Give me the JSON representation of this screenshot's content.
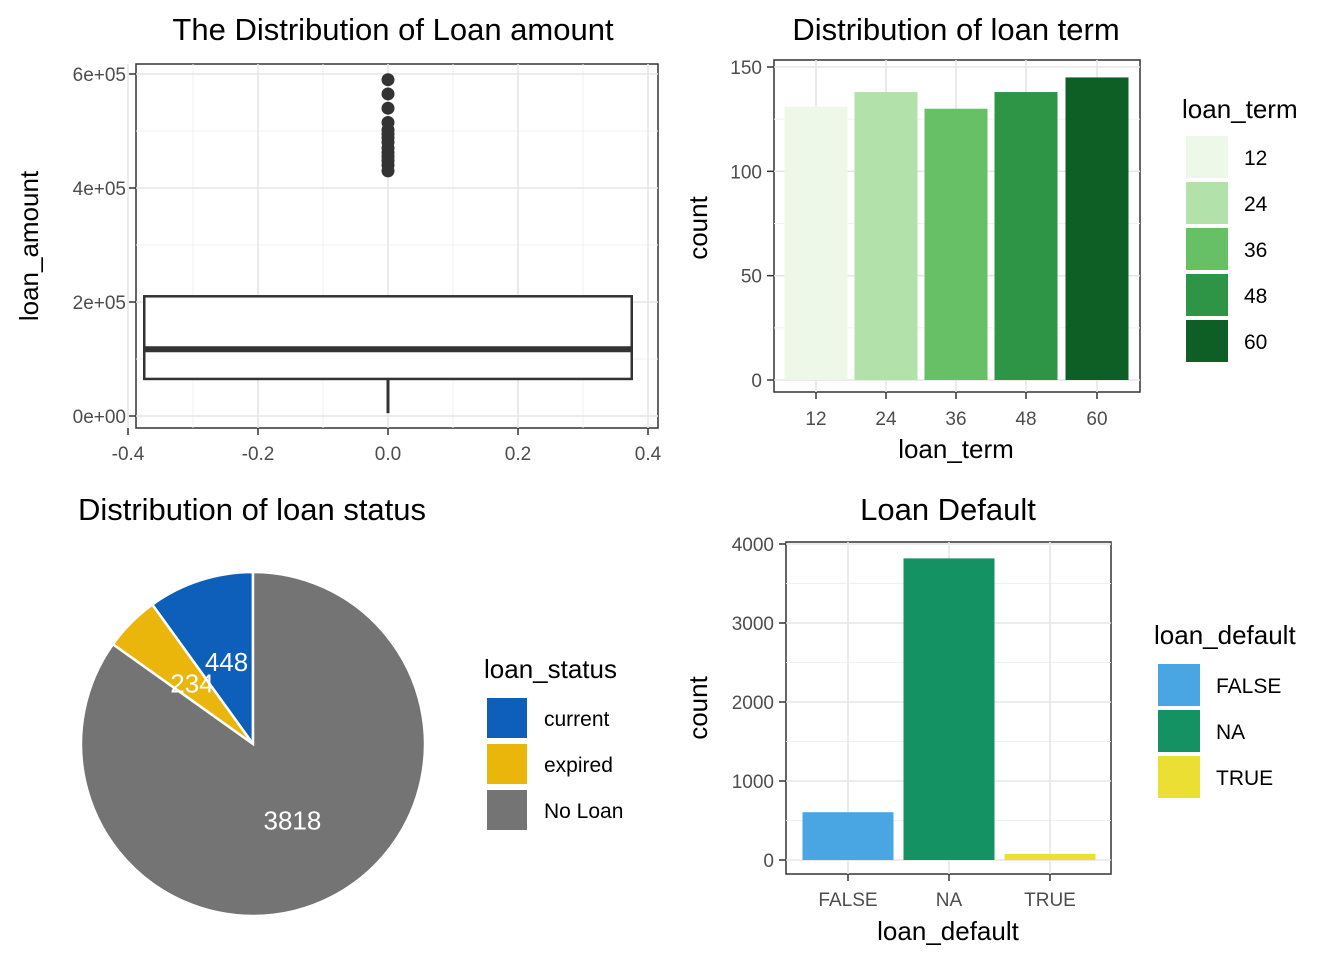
{
  "chart_data": [
    {
      "type": "box",
      "title": "The Distribution of Loan amount",
      "xlabel": "",
      "ylabel": "loan_amount",
      "xlim": [
        -0.4,
        0.4
      ],
      "ylim": [
        0,
        600000
      ],
      "x_ticks": [
        "-0.4",
        "-0.2",
        "0.0",
        "0.2",
        "0.4"
      ],
      "y_ticks": [
        "0e+00",
        "2e+05",
        "4e+05",
        "6e+05"
      ],
      "x_tick_values": [
        -0.4,
        -0.2,
        0.0,
        0.2,
        0.4
      ],
      "y_tick_values": [
        0,
        200000,
        400000,
        600000
      ],
      "box": {
        "x": 0.0,
        "min": 5000,
        "q1": 65000,
        "median": 117000,
        "q3": 210000,
        "whisker_max": 212000
      },
      "outliers": [
        430000,
        440000,
        448000,
        455000,
        462000,
        470000,
        480000,
        488000,
        495000,
        502000,
        515000,
        540000,
        565000,
        590000
      ],
      "grid": true
    },
    {
      "type": "bar",
      "title": "Distribution of loan term",
      "xlabel": "loan_term",
      "ylabel": "count",
      "categories": [
        "12",
        "24",
        "36",
        "48",
        "60"
      ],
      "values": [
        131,
        138,
        130,
        138,
        145
      ],
      "colors": [
        "#edf8e9",
        "#b2e2a9",
        "#67bf66",
        "#2e9547",
        "#0e5f26"
      ],
      "ylim": [
        0,
        150
      ],
      "y_ticks": [
        "0",
        "50",
        "100",
        "150"
      ],
      "y_tick_values": [
        0,
        50,
        100,
        150
      ],
      "legend_title": "loan_term",
      "legend_position": "right",
      "grid": true
    },
    {
      "type": "pie",
      "title": "Distribution of loan status",
      "labels": [
        "current",
        "expired",
        "No Loan"
      ],
      "values": [
        448,
        234,
        3818
      ],
      "data_labels": [
        "448",
        "234",
        "3818"
      ],
      "colors": [
        "#0d5fba",
        "#ebb60c",
        "#747474"
      ],
      "legend_title": "loan_status",
      "legend_position": "right"
    },
    {
      "type": "bar",
      "title": "Loan Default",
      "xlabel": "loan_default",
      "ylabel": "count",
      "categories": [
        "FALSE",
        "NA",
        "TRUE"
      ],
      "values": [
        605,
        3818,
        77
      ],
      "colors": [
        "#4aa6e2",
        "#159263",
        "#ebdf33"
      ],
      "ylim": [
        0,
        4000
      ],
      "y_ticks": [
        "0",
        "1000",
        "2000",
        "3000",
        "4000"
      ],
      "y_tick_values": [
        0,
        1000,
        2000,
        3000,
        4000
      ],
      "legend_title": "loan_default",
      "legend_position": "right",
      "grid": true
    }
  ]
}
